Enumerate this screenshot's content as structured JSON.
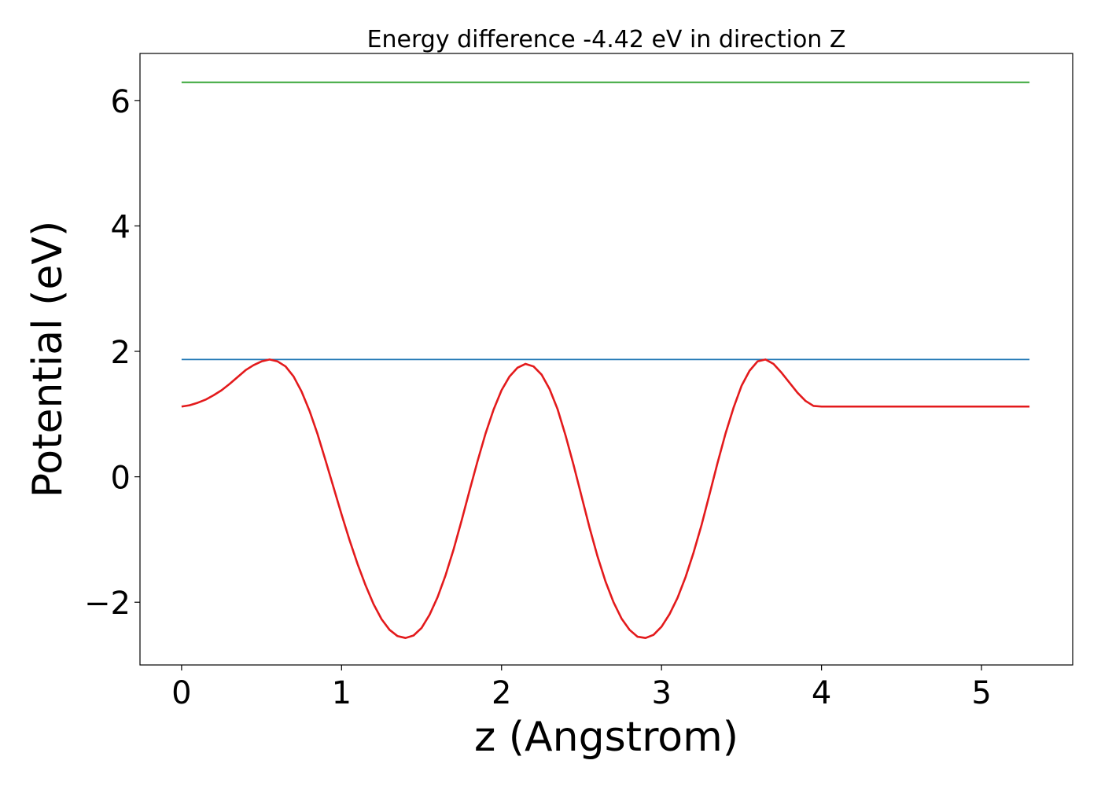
{
  "chart_data": {
    "type": "line",
    "title": "Energy difference -4.42 eV in direction Z",
    "xlabel": "z (Angstrom)",
    "ylabel": "Potential (eV)",
    "xlim": [
      -0.26,
      5.57
    ],
    "ylim": [
      -3.0,
      6.75
    ],
    "x_ticks": [
      0,
      1,
      2,
      3,
      4,
      5
    ],
    "y_ticks": [
      -2,
      0,
      2,
      4,
      6
    ],
    "y_tick_labels": [
      "−2",
      "0",
      "2",
      "4",
      "6"
    ],
    "grid": false,
    "legend": "none",
    "series": [
      {
        "color": "#2ca02c",
        "x": [
          0,
          5.3
        ],
        "y": [
          6.29,
          6.29
        ]
      },
      {
        "color": "#1f77b4",
        "x": [
          0,
          5.3
        ],
        "y": [
          1.87,
          1.87
        ]
      },
      {
        "color": "#e31a1c",
        "x": [
          0,
          0.05,
          0.1,
          0.15,
          0.2,
          0.25,
          0.3,
          0.35,
          0.4,
          0.45,
          0.5,
          0.55,
          0.6,
          0.65,
          0.7,
          0.75,
          0.8,
          0.85,
          0.9,
          0.95,
          1.0,
          1.05,
          1.1,
          1.15,
          1.2,
          1.25,
          1.3,
          1.35,
          1.4,
          1.45,
          1.5,
          1.55,
          1.6,
          1.65,
          1.7,
          1.75,
          1.8,
          1.85,
          1.9,
          1.95,
          2.0,
          2.05,
          2.1,
          2.15,
          2.2,
          2.25,
          2.3,
          2.35,
          2.4,
          2.45,
          2.5,
          2.55,
          2.6,
          2.65,
          2.7,
          2.75,
          2.8,
          2.85,
          2.9,
          2.95,
          3.0,
          3.05,
          3.1,
          3.15,
          3.2,
          3.25,
          3.3,
          3.35,
          3.4,
          3.45,
          3.5,
          3.55,
          3.6,
          3.65,
          3.7,
          3.75,
          3.8,
          3.85,
          3.9,
          3.95,
          4.0,
          4.05,
          4.1,
          4.15,
          4.2,
          4.25,
          4.3,
          4.35,
          4.4,
          4.45,
          4.5,
          4.55,
          4.6,
          4.65,
          4.7,
          4.75,
          4.8,
          4.85,
          4.9,
          4.95,
          5.0,
          5.05,
          5.1,
          5.15,
          5.2,
          5.25,
          5.3
        ],
        "y": [
          1.12,
          1.14,
          1.18,
          1.23,
          1.3,
          1.38,
          1.48,
          1.59,
          1.7,
          1.78,
          1.84,
          1.87,
          1.84,
          1.76,
          1.6,
          1.36,
          1.05,
          0.68,
          0.26,
          -0.17,
          -0.6,
          -1.01,
          -1.39,
          -1.73,
          -2.03,
          -2.27,
          -2.44,
          -2.54,
          -2.57,
          -2.53,
          -2.41,
          -2.2,
          -1.92,
          -1.57,
          -1.16,
          -0.7,
          -0.22,
          0.25,
          0.69,
          1.07,
          1.38,
          1.6,
          1.74,
          1.8,
          1.76,
          1.63,
          1.4,
          1.08,
          0.66,
          0.19,
          -0.31,
          -0.81,
          -1.27,
          -1.67,
          -2.0,
          -2.26,
          -2.44,
          -2.55,
          -2.57,
          -2.52,
          -2.39,
          -2.19,
          -1.93,
          -1.6,
          -1.21,
          -0.77,
          -0.28,
          0.22,
          0.69,
          1.1,
          1.45,
          1.69,
          1.84,
          1.87,
          1.8,
          1.66,
          1.5,
          1.34,
          1.21,
          1.13,
          1.12,
          1.12,
          1.12,
          1.12,
          1.12,
          1.12,
          1.12,
          1.12,
          1.12,
          1.12,
          1.12,
          1.12,
          1.12,
          1.12,
          1.12,
          1.12,
          1.12,
          1.12,
          1.12,
          1.12,
          1.12,
          1.12,
          1.12,
          1.12,
          1.12,
          1.12,
          1.12
        ]
      }
    ]
  }
}
